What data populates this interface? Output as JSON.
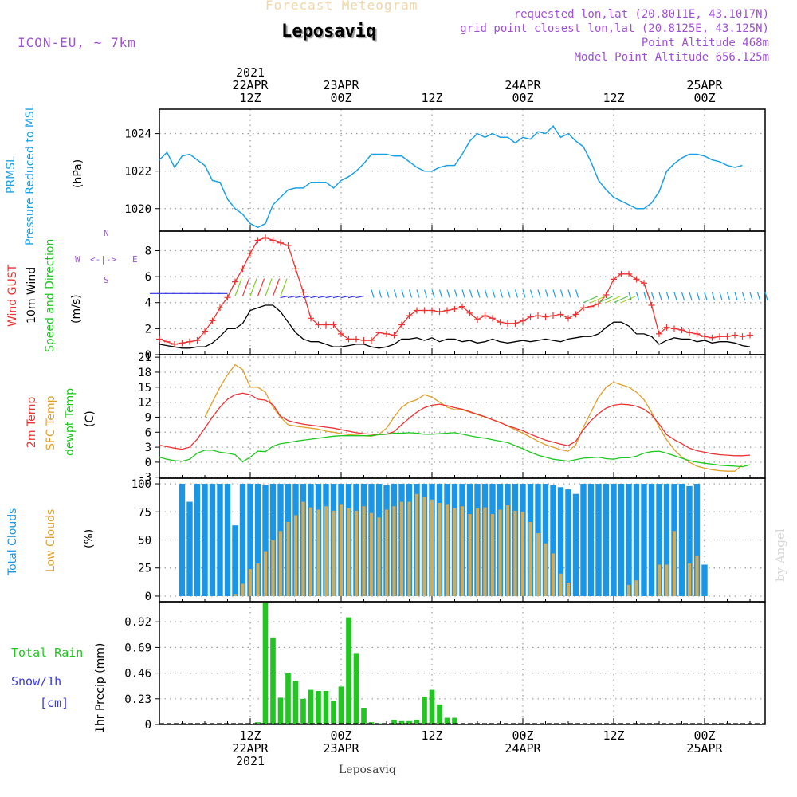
{
  "header": {
    "top_title": "Forecast Meteogram",
    "location": "Leposaviq",
    "model": "ICON-EU, ~ 7km",
    "requested": "requested lon,lat (20.8011E, 43.1017N)",
    "grid_point": "grid point closest lon,lat (20.8125E, 43.125N)",
    "point_altitude": "Point Altitude 468m",
    "model_altitude": "Model Point Altitude 656.125m",
    "watermark": "by Angel",
    "bottom_label": "Leposaviq"
  },
  "time_axis": {
    "top_ticks": [
      {
        "hour": 12,
        "lines": [
          "2021",
          "22APR",
          "12Z"
        ]
      },
      {
        "hour": 24,
        "lines": [
          "23APR",
          "00Z"
        ]
      },
      {
        "hour": 36,
        "lines": [
          "12Z"
        ]
      },
      {
        "hour": 48,
        "lines": [
          "24APR",
          "00Z"
        ]
      },
      {
        "hour": 60,
        "lines": [
          "12Z"
        ]
      },
      {
        "hour": 72,
        "lines": [
          "25APR",
          "00Z"
        ]
      }
    ],
    "bottom_ticks": [
      {
        "hour": 12,
        "lines": [
          "12Z",
          "22APR",
          "2021"
        ]
      },
      {
        "hour": 24,
        "lines": [
          "00Z",
          "23APR"
        ]
      },
      {
        "hour": 36,
        "lines": [
          "12Z"
        ]
      },
      {
        "hour": 48,
        "lines": [
          "00Z",
          "24APR"
        ]
      },
      {
        "hour": 60,
        "lines": [
          "12Z"
        ]
      },
      {
        "hour": 72,
        "lines": [
          "00Z",
          "25APR"
        ]
      }
    ]
  },
  "panels": {
    "pressure": {
      "label1": "PRMSL",
      "label2": "Pressure Reduced to MSL",
      "unit": "(hPa)"
    },
    "wind": {
      "gust": "Wind GUST",
      "wind10": "10m Wind",
      "speed": "Speed and Direction",
      "unit": "(m/s)",
      "compass": {
        "n": "N",
        "s": "S",
        "w": "W",
        "e": "E",
        "arrows": "<-|->"
      }
    },
    "temp": {
      "t2m": "2m Temp",
      "sfc": "SFC Temp",
      "dew": "dewpt Temp",
      "unit": "(C)"
    },
    "clouds": {
      "total": "Total Clouds",
      "low": "Low Clouds",
      "unit": "(%)"
    },
    "precip": {
      "rain": "Total  Rain",
      "snow": "Snow/1h",
      "cm": "[cm]",
      "unit": "1hr Precip (mm)"
    }
  },
  "colors": {
    "pressure": "#1aa0e6",
    "gust": "#ee3333",
    "wind": "#000000",
    "t2m": "#ee3333",
    "sfc": "#e0a02a",
    "dew": "#1ec81e",
    "total_clouds": "#1a96e6",
    "low_clouds": "#d4aa55",
    "rain": "#22c522",
    "purple": "#a050d8"
  },
  "chart_data": [
    {
      "type": "line",
      "title": "PRMSL",
      "ylabel": "(hPa)",
      "x_unit": "hours from 2021-04-22 00Z",
      "yticks": [
        1020,
        1022,
        1024
      ],
      "ylim": [
        1018.8,
        1025.3
      ],
      "grid": true,
      "series": [
        {
          "name": "PRMSL",
          "x_start": 0,
          "x_step": 1,
          "values": [
            1022.6,
            1023.0,
            1022.2,
            1022.8,
            1022.9,
            1022.6,
            1022.3,
            1021.5,
            1021.4,
            1020.5,
            1020.0,
            1019.7,
            1019.2,
            1019.0,
            1019.2,
            1020.2,
            1020.6,
            1021.0,
            1021.1,
            1021.1,
            1021.4,
            1021.4,
            1021.4,
            1021.1,
            1021.5,
            1021.7,
            1022.0,
            1022.4,
            1022.9,
            1022.9,
            1022.9,
            1022.8,
            1022.8,
            1022.5,
            1022.2,
            1022.0,
            1022.0,
            1022.2,
            1022.3,
            1022.3,
            1022.9,
            1023.6,
            1024.0,
            1023.8,
            1024.0,
            1023.8,
            1023.8,
            1023.5,
            1023.8,
            1023.7,
            1024.1,
            1024.0,
            1024.4,
            1023.8,
            1024.0,
            1023.6,
            1023.3,
            1022.5,
            1021.5,
            1021.0,
            1020.6,
            1020.4,
            1020.2,
            1020.0,
            1020.0,
            1020.3,
            1020.9,
            1022.0,
            1022.4,
            1022.7,
            1022.9,
            1022.9,
            1022.8,
            1022.6,
            1022.5,
            1022.3,
            1022.2,
            1022.3
          ]
        }
      ]
    },
    {
      "type": "line",
      "title": "Wind GUST / 10m Wind",
      "ylabel": "(m/s)",
      "yticks": [
        0,
        2,
        4,
        6,
        8
      ],
      "ylim": [
        0,
        9.5
      ],
      "grid": true,
      "series": [
        {
          "name": "Wind GUST",
          "x_start": 0,
          "x_step": 1,
          "values": [
            1.2,
            1.0,
            0.8,
            0.9,
            1.0,
            1.1,
            1.8,
            2.6,
            3.6,
            4.4,
            5.6,
            6.6,
            7.8,
            8.8,
            9.0,
            8.8,
            8.6,
            8.4,
            6.6,
            4.8,
            2.8,
            2.3,
            2.3,
            2.3,
            1.6,
            1.2,
            1.2,
            1.1,
            1.1,
            1.7,
            1.6,
            1.5,
            2.3,
            3.0,
            3.4,
            3.4,
            3.4,
            3.3,
            3.4,
            3.5,
            3.7,
            3.2,
            2.7,
            3.0,
            2.8,
            2.5,
            2.4,
            2.4,
            2.6,
            2.9,
            3.0,
            2.9,
            3.0,
            3.1,
            2.8,
            3.1,
            3.6,
            3.7,
            3.9,
            4.6,
            5.8,
            6.2,
            6.2,
            5.8,
            5.5,
            3.8,
            1.6,
            2.1,
            2.0,
            1.9,
            1.7,
            1.6,
            1.4,
            1.3,
            1.4,
            1.4,
            1.5,
            1.4,
            1.5
          ]
        },
        {
          "name": "10m Wind",
          "x_start": 0,
          "x_step": 1,
          "values": [
            0.8,
            0.7,
            0.6,
            0.5,
            0.5,
            0.6,
            0.6,
            0.9,
            1.4,
            2.0,
            2.0,
            2.4,
            3.4,
            3.6,
            3.8,
            3.8,
            3.3,
            2.5,
            1.7,
            1.2,
            1.0,
            1.0,
            0.8,
            0.6,
            0.6,
            0.7,
            0.8,
            0.8,
            0.6,
            0.5,
            0.6,
            0.8,
            1.2,
            1.2,
            1.3,
            1.1,
            1.3,
            1.0,
            1.2,
            1.2,
            1.0,
            1.1,
            0.9,
            1.0,
            1.2,
            1.0,
            0.9,
            1.0,
            1.1,
            1.0,
            1.1,
            1.2,
            1.1,
            1.0,
            1.2,
            1.3,
            1.4,
            1.4,
            1.6,
            2.1,
            2.5,
            2.5,
            2.2,
            1.6,
            1.6,
            1.4,
            0.8,
            1.1,
            1.3,
            1.2,
            1.2,
            1.0,
            1.1,
            0.9,
            1.0,
            1.0,
            0.9,
            0.7,
            0.6
          ]
        }
      ]
    },
    {
      "type": "line",
      "title": "Temperatures",
      "ylabel": "(C)",
      "yticks": [
        -3,
        0,
        3,
        6,
        9,
        12,
        15,
        18,
        21
      ],
      "ylim": [
        -3.2,
        21.5
      ],
      "grid": true,
      "series": [
        {
          "name": "2m Temp",
          "x_start": 0,
          "x_step": 1,
          "values": [
            3.4,
            3.1,
            2.8,
            2.6,
            3.0,
            4.6,
            6.8,
            9.0,
            11.0,
            12.6,
            13.5,
            13.8,
            13.5,
            12.6,
            12.4,
            11.5,
            9.2,
            8.3,
            7.9,
            7.6,
            7.4,
            7.2,
            7.0,
            6.8,
            6.5,
            6.2,
            5.9,
            5.7,
            5.6,
            5.5,
            5.6,
            6.1,
            7.5,
            8.8,
            10.0,
            10.9,
            11.4,
            11.6,
            11.3,
            10.9,
            10.6,
            10.1,
            9.6,
            9.1,
            8.5,
            7.9,
            7.3,
            6.8,
            6.3,
            5.6,
            5.0,
            4.4,
            4.0,
            3.6,
            3.3,
            4.2,
            6.5,
            8.3,
            9.7,
            10.8,
            11.4,
            11.6,
            11.5,
            11.2,
            10.6,
            9.5,
            7.6,
            5.5,
            4.5,
            3.7,
            2.8,
            2.3,
            2.0,
            1.7,
            1.5,
            1.4,
            1.3,
            1.3,
            1.4
          ]
        },
        {
          "name": "SFC Temp",
          "x_start": 0,
          "x_step": 1,
          "values": [
            null,
            null,
            null,
            null,
            null,
            null,
            9.0,
            12.0,
            15.0,
            17.5,
            19.5,
            18.5,
            15.0,
            15.0,
            14.0,
            11.0,
            9.0,
            7.5,
            7.2,
            7.0,
            6.8,
            6.6,
            6.2,
            6.0,
            5.7,
            5.5,
            5.4,
            5.3,
            5.2,
            5.6,
            6.8,
            9.0,
            11.0,
            12.0,
            12.5,
            13.5,
            13.0,
            12.0,
            11.0,
            10.5,
            10.5,
            10.0,
            9.5,
            9.0,
            8.5,
            8.0,
            7.2,
            6.5,
            5.8,
            5.0,
            4.2,
            3.5,
            3.0,
            2.5,
            2.2,
            3.5,
            7.0,
            10.0,
            13.0,
            15.0,
            16.0,
            15.5,
            15.0,
            14.0,
            12.5,
            10.0,
            7.0,
            4.5,
            2.5,
            1.0,
            0.0,
            -0.8,
            -1.2,
            -1.5,
            -1.7,
            -1.8,
            -1.8,
            -0.5,
            null
          ]
        },
        {
          "name": "dewpt Temp",
          "x_start": 0,
          "x_step": 1,
          "values": [
            1.0,
            0.6,
            0.3,
            0.2,
            0.6,
            1.8,
            2.4,
            2.4,
            2.0,
            1.8,
            1.5,
            0.1,
            1.0,
            2.2,
            2.1,
            3.2,
            3.7,
            3.9,
            4.2,
            4.4,
            4.6,
            4.8,
            5.0,
            5.2,
            5.3,
            5.3,
            5.3,
            5.3,
            5.3,
            5.5,
            5.6,
            5.8,
            5.8,
            5.9,
            5.8,
            5.6,
            5.6,
            5.7,
            5.8,
            5.9,
            5.6,
            5.3,
            5.0,
            4.8,
            4.5,
            4.2,
            3.9,
            3.3,
            2.7,
            2.0,
            1.4,
            1.0,
            0.6,
            0.4,
            0.2,
            0.5,
            0.8,
            0.9,
            1.0,
            0.7,
            0.6,
            0.9,
            0.9,
            1.2,
            1.8,
            2.1,
            2.2,
            1.8,
            1.3,
            0.8,
            0.3,
            0.0,
            -0.2,
            -0.4,
            -0.6,
            -0.7,
            -0.8,
            -0.9,
            -0.5
          ]
        }
      ]
    },
    {
      "type": "bar",
      "title": "Clouds",
      "ylabel": "(%)",
      "yticks": [
        0,
        25,
        50,
        75,
        100
      ],
      "ylim": [
        -5,
        105
      ],
      "grid": true,
      "series": [
        {
          "name": "Total Clouds",
          "x_start": 3,
          "x_step": 1,
          "values": [
            100,
            84,
            100,
            100,
            100,
            100,
            100,
            63,
            100,
            100,
            100,
            99,
            100,
            100,
            100,
            100,
            100,
            100,
            100,
            100,
            100,
            100,
            100,
            100,
            100,
            100,
            100,
            99,
            100,
            100,
            100,
            100,
            100,
            100,
            100,
            100,
            100,
            100,
            100,
            100,
            100,
            100,
            100,
            100,
            100,
            100,
            100,
            100,
            100,
            99,
            97,
            95,
            91,
            100,
            100,
            100,
            100,
            100,
            100,
            100,
            100,
            100,
            100,
            100,
            100,
            100,
            100,
            98,
            100,
            28
          ]
        },
        {
          "name": "Low Clouds",
          "x_start": 3,
          "x_step": 1,
          "values": [
            0,
            0,
            0,
            0,
            0,
            0,
            0,
            2,
            11,
            24,
            29,
            40,
            50,
            58,
            66,
            72,
            84,
            79,
            77,
            80,
            76,
            82,
            78,
            76,
            80,
            74,
            70,
            77,
            80,
            84,
            84,
            91,
            88,
            86,
            83,
            82,
            78,
            80,
            73,
            78,
            79,
            73,
            77,
            81,
            76,
            75,
            66,
            56,
            47,
            38,
            20,
            12,
            0,
            0,
            0,
            0,
            0,
            0,
            0,
            10,
            14,
            0,
            0,
            28,
            28,
            58,
            0,
            29,
            36,
            0
          ]
        }
      ]
    },
    {
      "type": "bar",
      "title": "1hr Precip",
      "ylabel": "1hr Precip (mm)",
      "yticks": [
        0,
        0.23,
        0.46,
        0.69,
        0.92
      ],
      "ylim": [
        0,
        1.1
      ],
      "grid": true,
      "series": [
        {
          "name": "Total Rain",
          "x_start": 13,
          "x_step": 1,
          "values": [
            0.02,
            1.09,
            0.78,
            0.24,
            0.46,
            0.39,
            0.23,
            0.31,
            0.3,
            0.3,
            0.21,
            0.34,
            0.96,
            0.64,
            0.15,
            0.02,
            0.01,
            0.0,
            0.04,
            0.03,
            0.03,
            0.04,
            0.25,
            0.31,
            0.18,
            0.06,
            0.06
          ]
        }
      ]
    }
  ]
}
